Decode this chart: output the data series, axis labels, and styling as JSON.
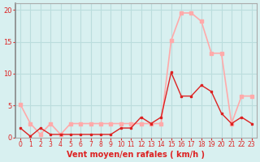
{
  "hours": [
    0,
    1,
    2,
    3,
    4,
    5,
    6,
    7,
    8,
    9,
    10,
    11,
    12,
    13,
    14,
    15,
    16,
    17,
    18,
    19,
    20,
    21,
    22,
    23
  ],
  "rafales": [
    5.2,
    2.2,
    0.5,
    2.2,
    0.5,
    2.2,
    2.2,
    2.2,
    2.2,
    2.2,
    2.2,
    2.2,
    2.2,
    2.2,
    2.2,
    15.2,
    19.5,
    19.5,
    18.2,
    13.2,
    13.2,
    2.2,
    6.5,
    6.5
  ],
  "moyen": [
    1.5,
    0.2,
    1.5,
    0.5,
    0.5,
    0.5,
    0.5,
    0.5,
    0.5,
    0.5,
    1.5,
    1.5,
    3.2,
    2.2,
    3.2,
    10.2,
    6.5,
    6.5,
    8.2,
    7.2,
    3.8,
    2.2,
    3.2,
    2.2
  ],
  "color_rafales": "#ffaaaa",
  "color_moyen": "#dd2222",
  "bg_color": "#d8f0f0",
  "grid_color": "#bbdddd",
  "xlabel": "Vent moyen/en rafales ( km/h )",
  "ylabel": "",
  "ylim": [
    0,
    21
  ],
  "yticks": [
    0,
    5,
    10,
    15,
    20
  ],
  "xticks": [
    0,
    1,
    2,
    3,
    4,
    5,
    6,
    7,
    8,
    9,
    10,
    11,
    12,
    13,
    14,
    15,
    16,
    17,
    18,
    19,
    20,
    21,
    22,
    23
  ],
  "tick_color": "#dd2222",
  "xlabel_color": "#dd2222",
  "ylabel_color": "#dd2222",
  "spine_color": "#aaaaaa"
}
